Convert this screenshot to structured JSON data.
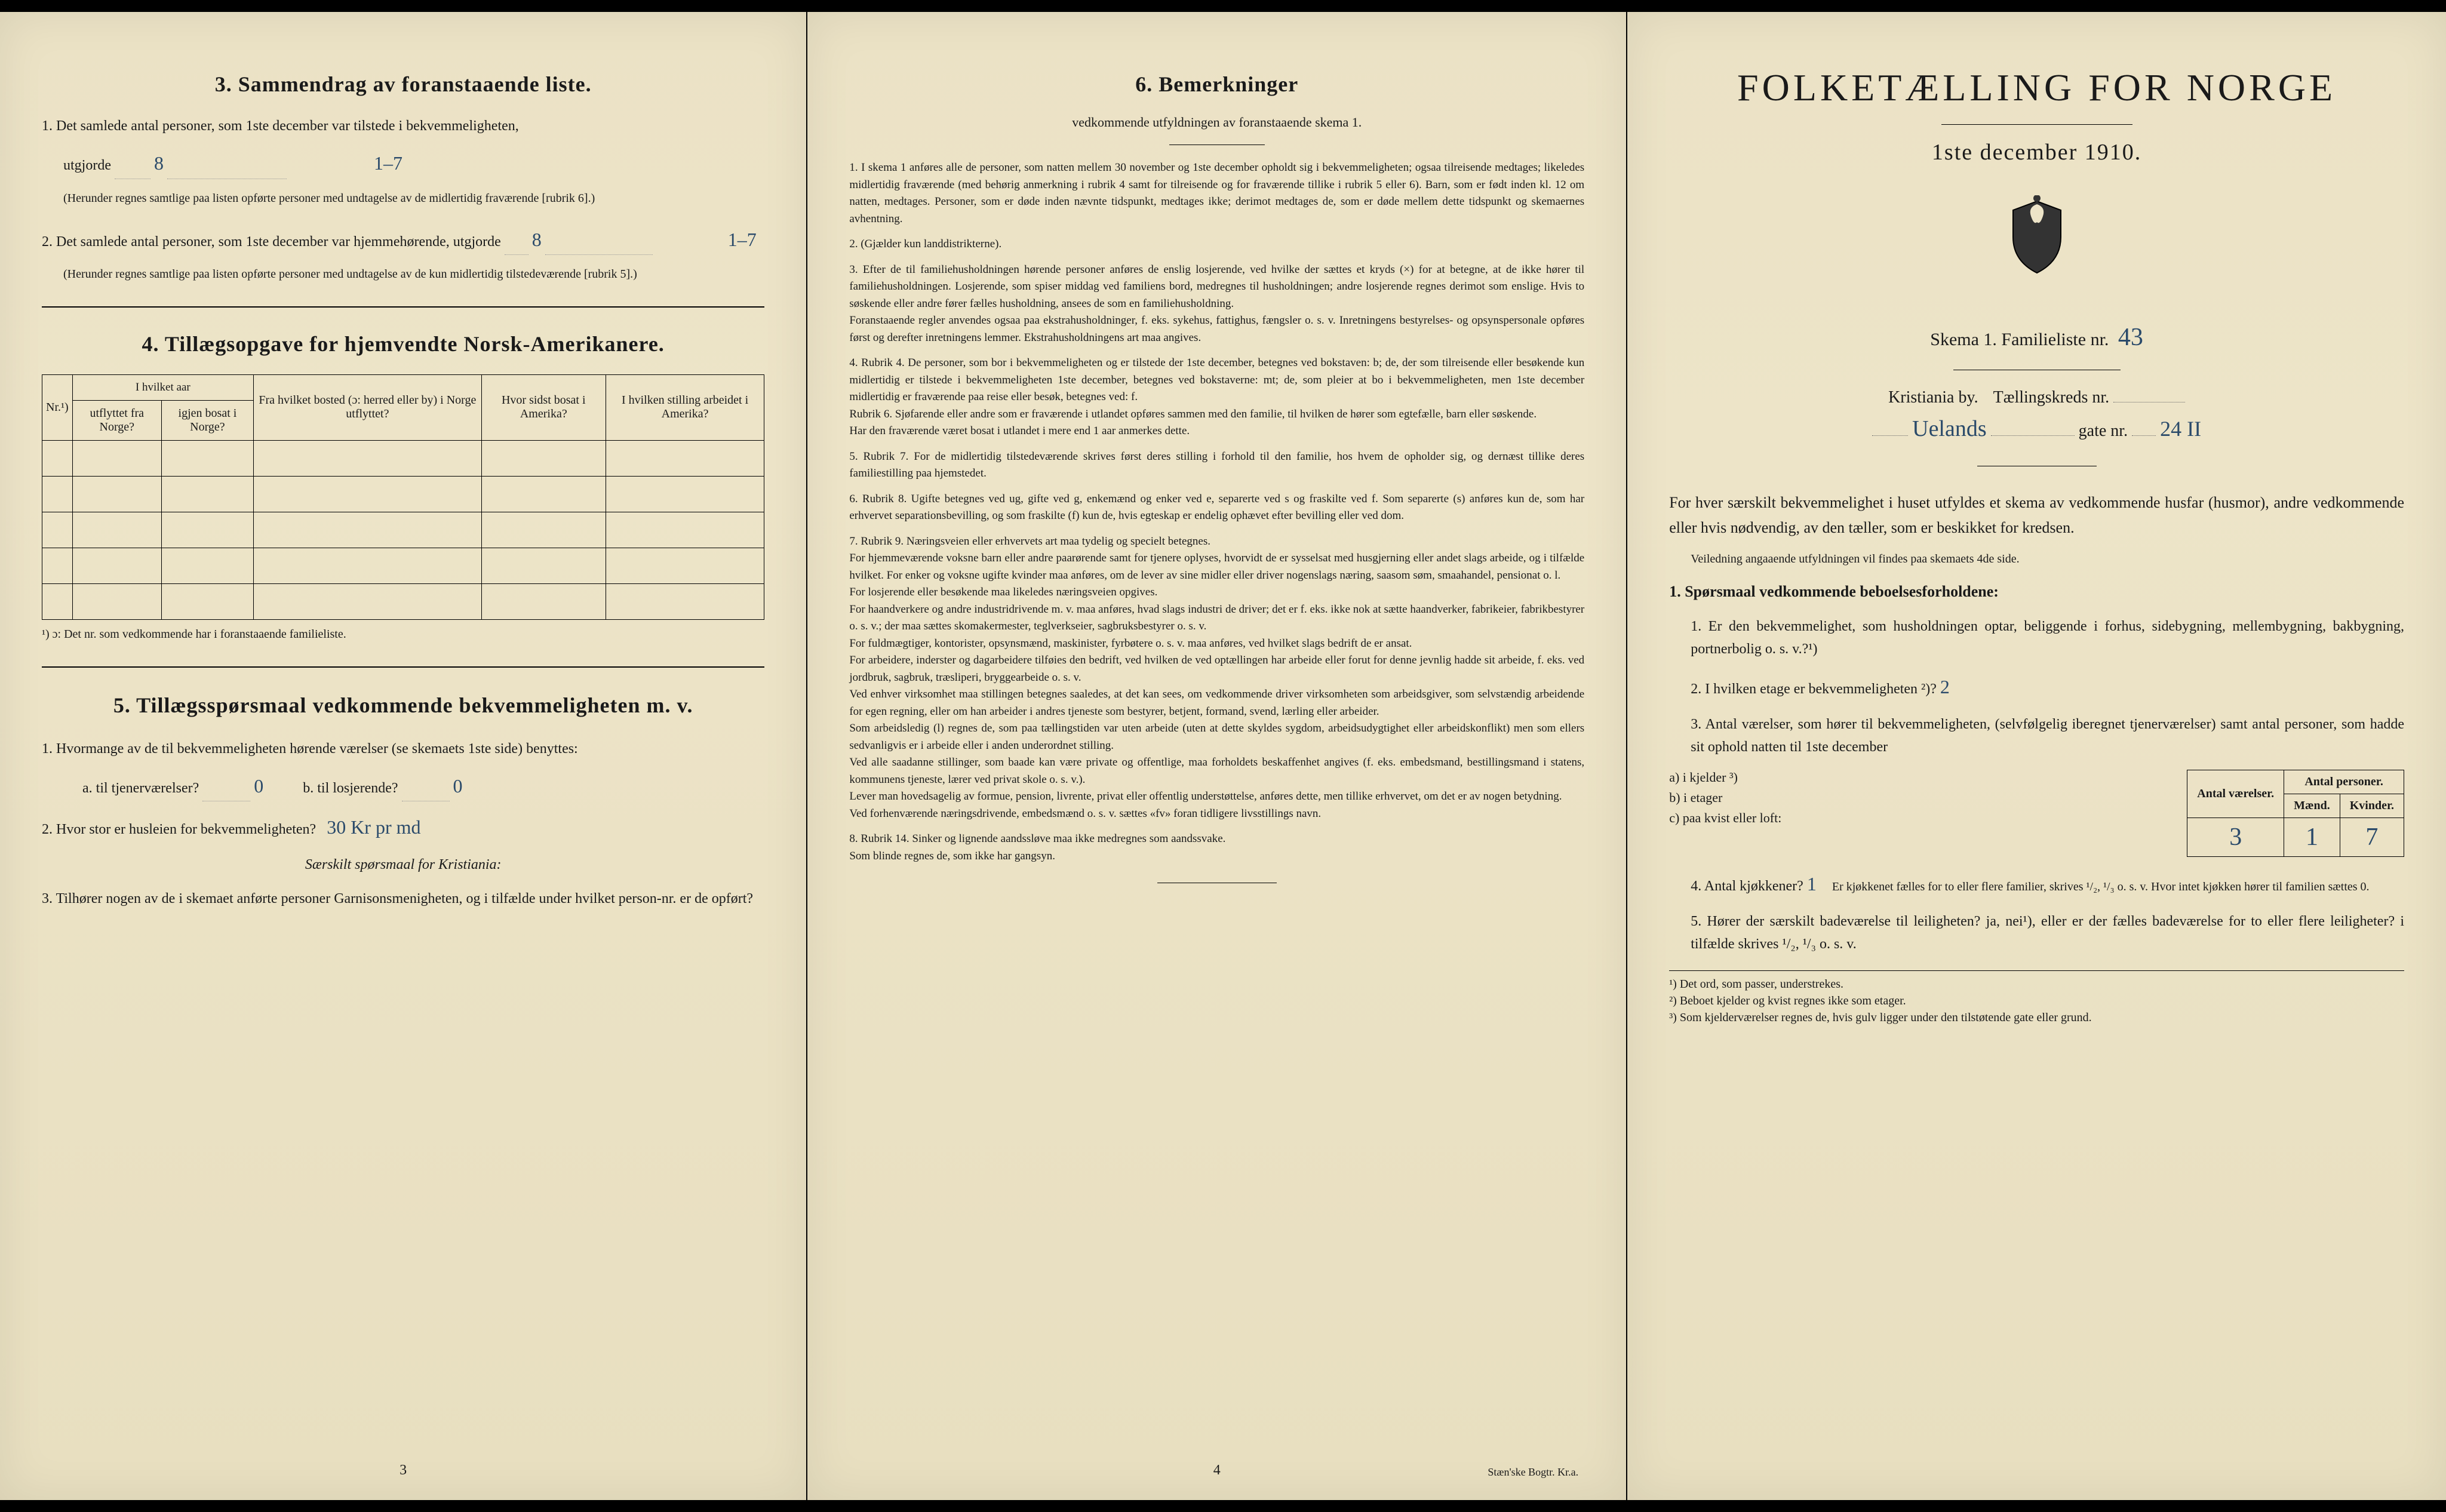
{
  "page_background": "#ede4c8",
  "text_color": "#1a1a1a",
  "handwritten_color": "#2a4a6a",
  "page_left": {
    "section3": {
      "title": "3.   Sammendrag av foranstaaende liste.",
      "item1": "1.  Det samlede antal personer, som 1ste december var tilstede i bekvemmeligheten,",
      "item1b": "utgjorde",
      "hand1": "8",
      "margin_note1": "1–7",
      "item1_note": "(Herunder regnes samtlige paa listen opførte personer med undtagelse av de midlertidig fraværende [rubrik 6].)",
      "item2": "2.  Det samlede antal personer, som 1ste december var hjemmehørende, utgjorde",
      "hand2": "8",
      "margin_note2": "1–7",
      "item2_note": "(Herunder regnes samtlige paa listen opførte personer med undtagelse av de kun midlertidig tilstedeværende [rubrik 5].)"
    },
    "section4": {
      "title": "4.   Tillægsopgave for hjemvendte Norsk-Amerikanere.",
      "headers": {
        "nr": "Nr.¹)",
        "col2_top": "I hvilket aar",
        "col2a": "utflyttet fra Norge?",
        "col2b": "igjen bosat i Norge?",
        "col3": "Fra hvilket bosted (ɔ: herred eller by) i Norge utflyttet?",
        "col4": "Hvor sidst bosat i Amerika?",
        "col5": "I hvilken stilling arbeidet i Amerika?"
      },
      "footnote": "¹) ɔ: Det nr. som vedkommende har i foranstaaende familieliste."
    },
    "section5": {
      "title": "5.   Tillægsspørsmaal vedkommende bekvemmeligheten m. v.",
      "item1": "1.  Hvormange av de til bekvemmeligheten hørende værelser (se skemaets 1ste side) benyttes:",
      "item1a": "a.  til tjenerværelser?",
      "hand1a": "0",
      "item1b": "b.  til losjerende?",
      "hand1b": "0",
      "item2": "2.  Hvor stor er husleien for bekvemmeligheten?",
      "hand2": "30 Kr pr md",
      "item2_note": "Særskilt spørsmaal for Kristiania:",
      "item3": "3.  Tilhører nogen av de i skemaet anførte personer Garnisonsmenigheten, og i tilfælde under hvilket person-nr. er de opført?"
    },
    "page_number": "3"
  },
  "page_center": {
    "section6": {
      "title": "6.   Bemerkninger",
      "subtitle": "vedkommende utfyldningen av foranstaaende skema 1.",
      "items": [
        "1.  I skema 1 anføres alle de personer, som natten mellem 30 november og 1ste december opholdt sig i bekvemmeligheten; ogsaa tilreisende medtages; likeledes midlertidig fraværende (med behørig anmerkning i rubrik 4 samt for tilreisende og for fraværende tillike i rubrik 5 eller 6). Barn, som er født inden kl. 12 om natten, medtages. Personer, som er døde inden nævnte tidspunkt, medtages ikke; derimot medtages de, som er døde mellem dette tidspunkt og skemaernes avhentning.",
        "2.  (Gjælder kun landdistrikterne).",
        "3.  Efter de til familiehusholdningen hørende personer anføres de enslig losjerende, ved hvilke der sættes et kryds (×) for at betegne, at de ikke hører til familiehusholdningen. Losjerende, som spiser middag ved familiens bord, medregnes til husholdningen; andre losjerende regnes derimot som enslige. Hvis to søskende eller andre fører fælles husholdning, ansees de som en familiehusholdning.\n     Foranstaaende regler anvendes ogsaa paa ekstrahusholdninger, f. eks. sykehus, fattighus, fængsler o. s. v. Inretningens bestyrelses- og opsynspersonale opføres først og derefter inretningens lemmer. Ekstrahusholdningens art maa angives.",
        "4.  Rubrik 4. De personer, som bor i bekvemmeligheten og er tilstede der 1ste december, betegnes ved bokstaven: b; de, der som tilreisende eller besøkende kun midlertidig er tilstede i bekvemmeligheten 1ste december, betegnes ved bokstaverne: mt; de, som pleier at bo i bekvemmeligheten, men 1ste december midlertidig er fraværende paa reise eller besøk, betegnes ved: f.\n     Rubrik 6. Sjøfarende eller andre som er fraværende i utlandet opføres sammen med den familie, til hvilken de hører som egtefælle, barn eller søskende.\n     Har den fraværende været bosat i utlandet i mere end 1 aar anmerkes dette.",
        "5.  Rubrik 7. For de midlertidig tilstedeværende skrives først deres stilling i forhold til den familie, hos hvem de opholder sig, og dernæst tillike deres familiestilling paa hjemstedet.",
        "6.  Rubrik 8. Ugifte betegnes ved ug, gifte ved g, enkemænd og enker ved e, separerte ved s og fraskilte ved f. Som separerte (s) anføres kun de, som har erhvervet separationsbevilling, og som fraskilte (f) kun de, hvis egteskap er endelig ophævet efter bevilling eller ved dom.",
        "7.  Rubrik 9. Næringsveien eller erhvervets art maa tydelig og specielt betegnes.\n     For hjemmeværende voksne barn eller andre paarørende samt for tjenere oplyses, hvorvidt de er sysselsat med husgjerning eller andet slags arbeide, og i tilfælde hvilket. For enker og voksne ugifte kvinder maa anføres, om de lever av sine midler eller driver nogenslags næring, saasom søm, smaahandel, pensionat o. l.\n     For losjerende eller besøkende maa likeledes næringsveien opgives.\n     For haandverkere og andre industridrivende m. v. maa anføres, hvad slags industri de driver; det er f. eks. ikke nok at sætte haandverker, fabrikeier, fabrikbestyrer o. s. v.; der maa sættes skomakermester, teglverkseier, sagbruksbestyrer o. s. v.\n     For fuldmægtiger, kontorister, opsynsmænd, maskinister, fyrbøtere o. s. v. maa anføres, ved hvilket slags bedrift de er ansat.\n     For arbeidere, inderster og dagarbeidere tilføies den bedrift, ved hvilken de ved optællingen har arbeide eller forut for denne jevnlig hadde sit arbeide, f. eks. ved jordbruk, sagbruk, træsliperi, bryggearbeide o. s. v.\n     Ved enhver virksomhet maa stillingen betegnes saaledes, at det kan sees, om vedkommende driver virksomheten som arbeidsgiver, som selvstændig arbeidende for egen regning, eller om han arbeider i andres tjeneste som bestyrer, betjent, formand, svend, lærling eller arbeider.\n     Som arbeidsledig (l) regnes de, som paa tællingstiden var uten arbeide (uten at dette skyldes sygdom, arbeidsudygtighet eller arbeidskonflikt) men som ellers sedvanligvis er i arbeide eller i anden underordnet stilling.\n     Ved alle saadanne stillinger, som baade kan være private og offentlige, maa forholdets beskaffenhet angives (f. eks. embedsmand, bestillingsmand i statens, kommunens tjeneste, lærer ved privat skole o. s. v.).\n     Lever man hovedsagelig av formue, pension, livrente, privat eller offentlig understøttelse, anføres dette, men tillike erhvervet, om det er av nogen betydning.\n     Ved forhenværende næringsdrivende, embedsmænd o. s. v. sættes «fv» foran tidligere livsstillings navn.",
        "8.  Rubrik 14. Sinker og lignende aandssløve maa ikke medregnes som aandssvake.\n     Som blinde regnes de, som ikke har gangsyn."
      ]
    },
    "page_number": "4",
    "printer": "Stæn'ske Bogtr. Kr.a."
  },
  "page_right": {
    "main_title": "FOLKETÆLLING FOR NORGE",
    "date_line": "1ste december 1910.",
    "schema_line": "Skema 1.   Familieliste nr.",
    "hand_list_nr": "43",
    "location_city": "Kristiania by.",
    "location_tkreds": "Tællingskreds nr.",
    "hand_street": "Uelands",
    "gate_label": "gate nr.",
    "hand_gate_nr": "24 II",
    "intro": "For hver særskilt bekvemmelighet i huset utfyldes et skema av vedkommende husfar (husmor), andre vedkommende eller hvis nødvendig, av den tæller, som er beskikket for kredsen.",
    "intro_note": "Veiledning angaaende utfyldningen vil findes paa skemaets 4de side.",
    "q_header": "1.  Spørsmaal vedkommende beboelsesforholdene:",
    "q1": "1.  Er den bekvemmelighet, som husholdningen optar, beliggende i forhus, sidebygning, mellembygning, bakbygning, portnerbolig o. s. v.?¹)",
    "q2": "2.  I hvilken etage er bekvemmeligheten ²)?",
    "hand_etage": "2",
    "q3": "3.  Antal værelser, som hører til bekvemmeligheten, (selvfølgelig iberegnet tjenerværelser) samt antal personer, som hadde sit ophold natten til 1ste december",
    "table": {
      "h_rooms": "Antal værelser.",
      "h_persons": "Antal personer.",
      "h_m": "Mænd.",
      "h_k": "Kvinder.",
      "row_a": "a) i kjelder ³)",
      "row_b": "b) i etager",
      "row_c": "c) paa kvist eller loft:",
      "val_rooms": "3",
      "val_m": "1",
      "val_k": "7"
    },
    "q4": "4.  Antal kjøkkener?",
    "hand_kj": "1",
    "q4b": "Er kjøkkenet fælles for to eller flere familier, skrives ¹/₂, ¹/₃ o. s. v.  Hvor intet kjøkken hører til familien sættes 0.",
    "q5": "5.  Hører der særskilt badeværelse til leiligheten?  ja, nei¹), eller er der fælles badeværelse for to eller flere leiligheter? i tilfælde skrives ¹/₂, ¹/₃ o. s. v.",
    "footnotes": [
      "¹)  Det ord, som passer, understrekes.",
      "²)  Beboet kjelder og kvist regnes ikke som etager.",
      "³)  Som kjelderværelser regnes de, hvis gulv ligger under den tilstøtende gate eller grund."
    ]
  }
}
